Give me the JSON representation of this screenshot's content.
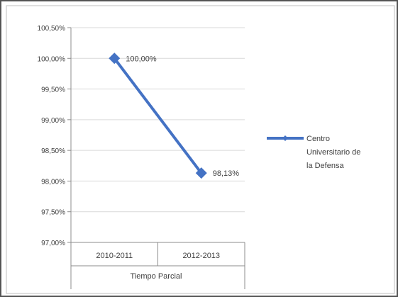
{
  "chart_data": {
    "type": "line",
    "title": "",
    "categories": [
      "2010-2011",
      "2012-2013"
    ],
    "category_group_label": "Tiempo Parcial",
    "y_ticks": [
      "100,50%",
      "100,00%",
      "99,50%",
      "99,00%",
      "98,50%",
      "98,00%",
      "97,50%",
      "97,00%"
    ],
    "ylim": [
      97.0,
      100.5
    ],
    "grid": "horizontal",
    "legend_position": "right",
    "series": [
      {
        "name": "Centro Universitario de la Defensa",
        "legend_lines": [
          "Centro",
          "Universitario de",
          "la Defensa"
        ],
        "values": [
          100.0,
          98.13
        ],
        "labels": [
          "100,00%",
          "98,13%"
        ],
        "color": "#4472C4"
      }
    ]
  }
}
